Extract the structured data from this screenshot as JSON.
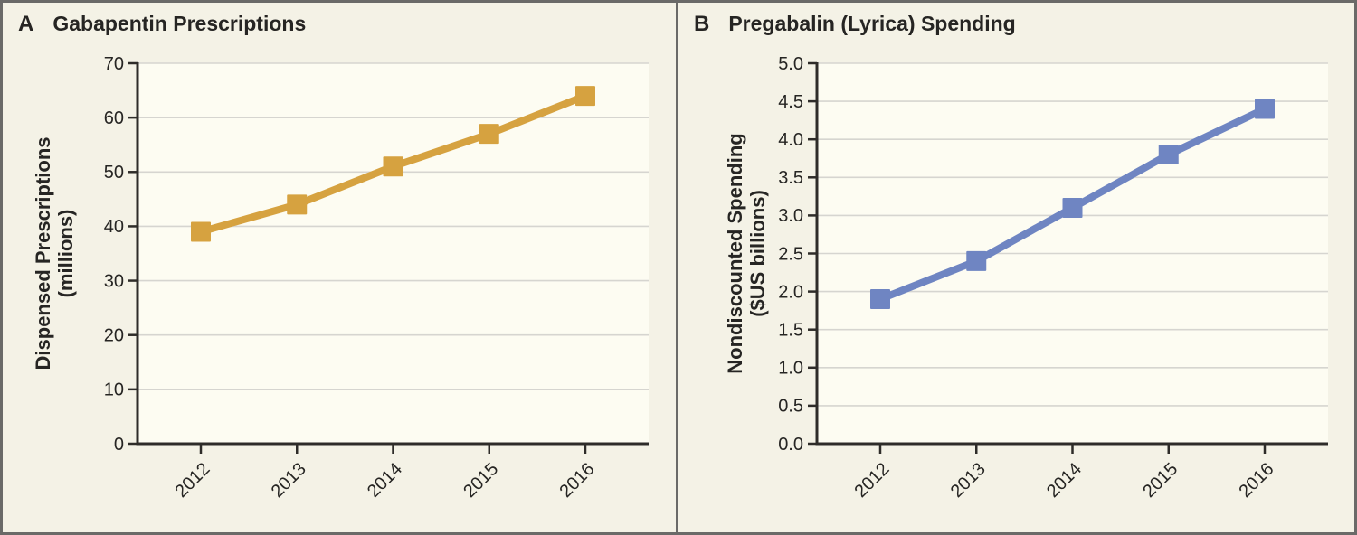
{
  "figure": {
    "background": "#f4f2e6",
    "plot_background": "#fdfcf2",
    "frame_color": "#6a6a68",
    "grid_color": "#d6d5d0",
    "axis_color": "#2e2c29",
    "text_color": "#262523"
  },
  "chart_data": [
    {
      "type": "line",
      "panel_label": "A",
      "title": "Gabapentin Prescriptions",
      "ylabel_lines": [
        "Dispensed Prescriptions",
        "(millions)"
      ],
      "xlabel": "",
      "categories": [
        "2012",
        "2013",
        "2014",
        "2015",
        "2016"
      ],
      "series": [
        {
          "name": "Gabapentin dispensed prescriptions",
          "values": [
            39,
            44,
            51,
            57,
            64
          ],
          "color": "#d6a240",
          "marker": "square"
        }
      ],
      "ylim": [
        0,
        70
      ],
      "yticks": [
        0,
        10,
        20,
        30,
        40,
        50,
        60,
        70
      ],
      "ytick_labels": [
        "0",
        "10",
        "20",
        "30",
        "40",
        "50",
        "60",
        "70"
      ],
      "grid": true,
      "legend_position": "none"
    },
    {
      "type": "line",
      "panel_label": "B",
      "title": "Pregabalin (Lyrica) Spending",
      "ylabel_lines": [
        "Nondiscounted Spending",
        "($US billions)"
      ],
      "xlabel": "",
      "categories": [
        "2012",
        "2013",
        "2014",
        "2015",
        "2016"
      ],
      "series": [
        {
          "name": "Pregabalin nondiscounted spending",
          "values": [
            1.9,
            2.4,
            3.1,
            3.8,
            4.4
          ],
          "color": "#6f85c2",
          "marker": "square"
        }
      ],
      "ylim": [
        0,
        5
      ],
      "yticks": [
        0,
        0.5,
        1.0,
        1.5,
        2.0,
        2.5,
        3.0,
        3.5,
        4.0,
        4.5,
        5.0
      ],
      "ytick_labels": [
        "0.0",
        "0.5",
        "1.0",
        "1.5",
        "2.0",
        "2.5",
        "3.0",
        "3.5",
        "4.0",
        "4.5",
        "5.0"
      ],
      "grid": true,
      "legend_position": "none"
    }
  ]
}
